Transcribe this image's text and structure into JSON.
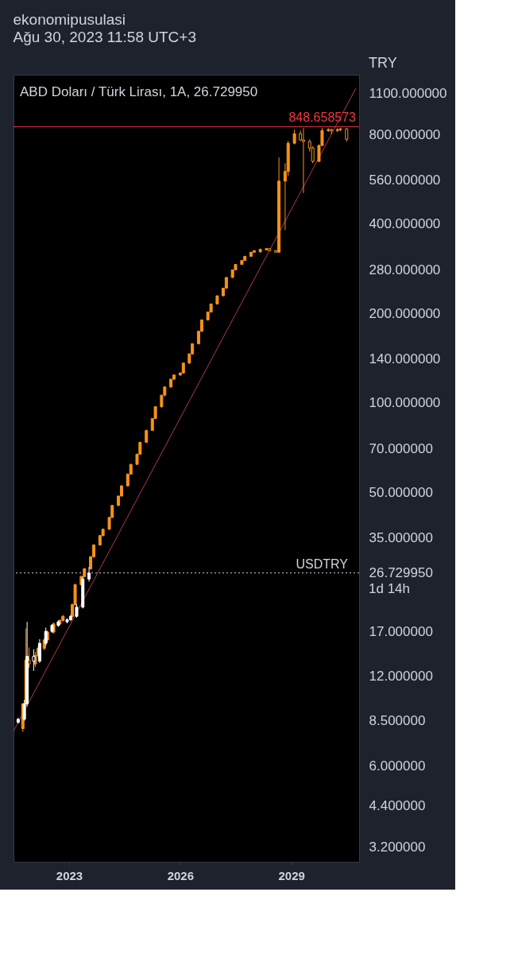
{
  "chart_data": {
    "type": "candlestick",
    "title": "ekonomipusulasi",
    "subtitle": "Ağu 30, 2023 11:58 UTC+3",
    "annotations": [
      "ABD Doları / Türk Lirası, 1A, 26.729950",
      "TRY",
      "1d 14h"
    ],
    "log": true,
    "grid": false,
    "legend": false,
    "xlim": [
      "2021-07",
      "2030-11"
    ],
    "xticks": [
      {
        "value": "2023-01",
        "label": "2023"
      },
      {
        "value": "2026-01",
        "label": "2026"
      },
      {
        "value": "2029-01",
        "label": "2029"
      }
    ],
    "ylim": [
      2.85,
      1270
    ],
    "yticks": [
      {
        "value": 3.2,
        "label": "3.200000"
      },
      {
        "value": 4.4,
        "label": "4.400000"
      },
      {
        "value": 6,
        "label": "6.000000"
      },
      {
        "value": 8.5,
        "label": "8.500000"
      },
      {
        "value": 12,
        "label": "12.000000"
      },
      {
        "value": 17,
        "label": "17.000000"
      },
      {
        "value": 26.72995,
        "label": "26.729950"
      },
      {
        "value": 35,
        "label": "35.000000"
      },
      {
        "value": 50,
        "label": "50.000000"
      },
      {
        "value": 70,
        "label": "70.000000"
      },
      {
        "value": 100,
        "label": "100.000000"
      },
      {
        "value": 140,
        "label": "140.000000"
      },
      {
        "value": 200,
        "label": "200.000000"
      },
      {
        "value": 280,
        "label": "280.000000"
      },
      {
        "value": 400,
        "label": "400.000000"
      },
      {
        "value": 560,
        "label": "560.000000"
      },
      {
        "value": 800,
        "label": "800.000000"
      },
      {
        "value": 1100,
        "label": "1100.000000"
      }
    ],
    "ref_lines": [
      {
        "axis": "y",
        "value": 848.658573,
        "label": "848.658573",
        "color": "#f23645",
        "line_style": "solid"
      },
      {
        "axis": "y",
        "value": 26.72995,
        "label": "USDTRY",
        "color": "#d1d4dc",
        "line_style": "dotted"
      }
    ],
    "series": [
      {
        "type": "candlestick",
        "color": "#f7931a",
        "x": [
          "2021-10",
          "2021-11",
          "2021-12",
          "2022-02",
          "2022-03",
          "2022-05",
          "2022-06",
          "2022-08",
          "2022-10",
          "2022-11",
          "2023-02",
          "2023-03",
          "2023-05",
          "2023-06",
          "2023-08",
          "2023-09",
          "2023-11",
          "2023-12",
          "2024-02",
          "2024-03",
          "2024-05",
          "2024-06",
          "2024-08",
          "2024-09",
          "2024-11",
          "2024-12",
          "2025-02",
          "2025-04",
          "2025-05",
          "2025-07",
          "2025-08",
          "2025-10",
          "2025-11",
          "2026-01",
          "2026-02",
          "2026-04",
          "2026-05",
          "2026-07",
          "2026-08",
          "2026-10",
          "2026-11",
          "2027-01",
          "2027-03",
          "2027-04",
          "2027-06",
          "2027-07",
          "2027-09",
          "2027-10",
          "2027-12",
          "2028-01",
          "2028-03",
          "2028-05",
          "2028-06",
          "2028-08",
          "2028-09",
          "2028-11",
          "2028-12",
          "2029-02",
          "2029-04",
          "2029-05",
          "2029-07",
          "2029-08",
          "2029-10",
          "2029-11",
          "2030-01",
          "2030-02",
          "2030-04",
          "2030-05",
          "2030-07"
        ],
        "ohlc": [
          [
            8.0,
            9.7,
            7.8,
            9.7
          ],
          [
            9.7,
            17.4,
            9.7,
            13.6
          ],
          [
            13.6,
            15.0,
            12.8,
            13.2
          ],
          [
            13.2,
            14.5,
            12.9,
            14.1
          ],
          [
            14.1,
            15.1,
            13.9,
            14.9
          ],
          [
            14.9,
            16.1,
            14.7,
            15.9
          ],
          [
            15.9,
            17.1,
            15.7,
            16.9
          ],
          [
            16.9,
            18.2,
            16.7,
            18.0
          ],
          [
            18.0,
            18.7,
            17.8,
            18.5
          ],
          [
            18.5,
            19.3,
            18.3,
            19.1
          ],
          [
            19.1,
            21.1,
            18.9,
            20.9
          ],
          [
            20.9,
            24.6,
            20.7,
            24.4
          ],
          [
            24.4,
            26.2,
            24.2,
            26.0
          ],
          [
            26.0,
            27.8,
            25.8,
            27.6
          ],
          [
            27.6,
            30.5,
            27.4,
            30.3
          ],
          [
            30.3,
            33.4,
            30.1,
            33.2
          ],
          [
            33.2,
            35.9,
            33.0,
            35.7
          ],
          [
            35.7,
            37.7,
            35.5,
            37.5
          ],
          [
            37.5,
            41.3,
            37.3,
            41.1
          ],
          [
            41.1,
            45.3,
            40.9,
            45.1
          ],
          [
            45.1,
            48.7,
            44.9,
            48.5
          ],
          [
            48.5,
            52.7,
            48.3,
            52.5
          ],
          [
            52.5,
            57.7,
            52.3,
            57.5
          ],
          [
            57.5,
            62.2,
            57.3,
            62.0
          ],
          [
            62.0,
            67.3,
            61.8,
            67.1
          ],
          [
            67.1,
            73.8,
            66.9,
            73.6
          ],
          [
            73.6,
            80.9,
            73.4,
            80.7
          ],
          [
            80.7,
            88.7,
            80.5,
            88.5
          ],
          [
            88.5,
            97,
            88.3,
            97
          ],
          [
            97,
            106,
            96,
            106
          ],
          [
            106,
            113,
            105,
            113
          ],
          [
            113,
            120,
            112,
            120
          ],
          [
            120,
            124,
            119,
            124
          ],
          [
            124,
            126,
            123,
            126
          ],
          [
            126,
            136,
            125,
            136
          ],
          [
            136,
            146,
            135,
            146
          ],
          [
            146,
            158,
            145,
            158
          ],
          [
            158,
            174,
            157,
            174
          ],
          [
            174,
            190,
            173,
            190
          ],
          [
            190,
            202,
            189,
            202
          ],
          [
            202,
            215,
            201,
            215
          ],
          [
            215,
            229,
            214,
            229
          ],
          [
            229,
            243,
            228,
            243
          ],
          [
            243,
            264,
            242,
            264
          ],
          [
            264,
            280,
            263,
            280
          ],
          [
            280,
            292,
            279,
            292
          ],
          [
            292,
            301,
            291,
            301
          ],
          [
            301,
            311,
            300,
            311
          ],
          [
            311,
            321,
            310,
            321
          ],
          [
            321,
            325,
            320,
            325
          ],
          [
            322,
            330,
            320,
            328
          ],
          [
            327,
            330,
            326,
            330
          ],
          [
            330,
            331,
            324,
            325
          ],
          [
            325,
            326,
            320,
            321
          ],
          [
            321,
            669,
            320,
            557
          ],
          [
            557,
            640,
            381,
            600
          ],
          [
            600,
            760,
            580,
            747
          ],
          [
            747,
            830,
            740,
            804
          ],
          [
            804,
            824,
            760,
            766
          ],
          [
            766,
            840,
            508,
            757
          ],
          [
            757,
            770,
            700,
            720
          ],
          [
            720,
            730,
            640,
            649
          ],
          [
            649,
            740,
            645,
            734
          ],
          [
            734,
            840,
            730,
            824
          ],
          [
            824,
            840,
            815,
            830
          ],
          [
            830,
            835,
            800,
            824
          ],
          [
            824,
            840,
            815,
            830
          ],
          [
            830,
            840,
            820,
            835
          ],
          [
            835,
            840,
            757,
            770
          ]
        ]
      },
      {
        "type": "candlestick",
        "color": "#ffffff",
        "x": [
          "2021-08-16",
          "2021-10-16",
          "2021-11-12",
          "2022-01-16",
          "2022-03-16",
          "2022-05-16",
          "2022-07-16",
          "2022-09-16",
          "2022-12-12",
          "2023-01-16",
          "2023-03-16",
          "2023-05-16",
          "2023-07-16"
        ],
        "ohlc": [
          [
            8.4,
            8.7,
            8.3,
            8.6
          ],
          [
            8.6,
            10.0,
            8.5,
            9.7
          ],
          [
            9.7,
            18.3,
            9.5,
            14.0
          ],
          [
            14.0,
            14.8,
            12.5,
            13.5
          ],
          [
            13.5,
            16.0,
            13.3,
            15.5
          ],
          [
            15.5,
            17.5,
            15.2,
            17.0
          ],
          [
            17.0,
            18.0,
            16.8,
            17.8
          ],
          [
            17.8,
            18.5,
            17.6,
            18.3
          ],
          [
            18.3,
            18.8,
            18.1,
            18.6
          ],
          [
            18.6,
            19.3,
            18.4,
            19.1
          ],
          [
            19.1,
            21.0,
            18.9,
            20.5
          ],
          [
            20.5,
            26.0,
            20.3,
            25.5
          ],
          [
            25.5,
            28.0,
            25.0,
            26.7
          ]
        ]
      },
      {
        "type": "line",
        "color": "#b2394b",
        "x": [
          "2021-07",
          "2030-10"
        ],
        "values": [
          7.85,
          1145
        ]
      }
    ]
  }
}
